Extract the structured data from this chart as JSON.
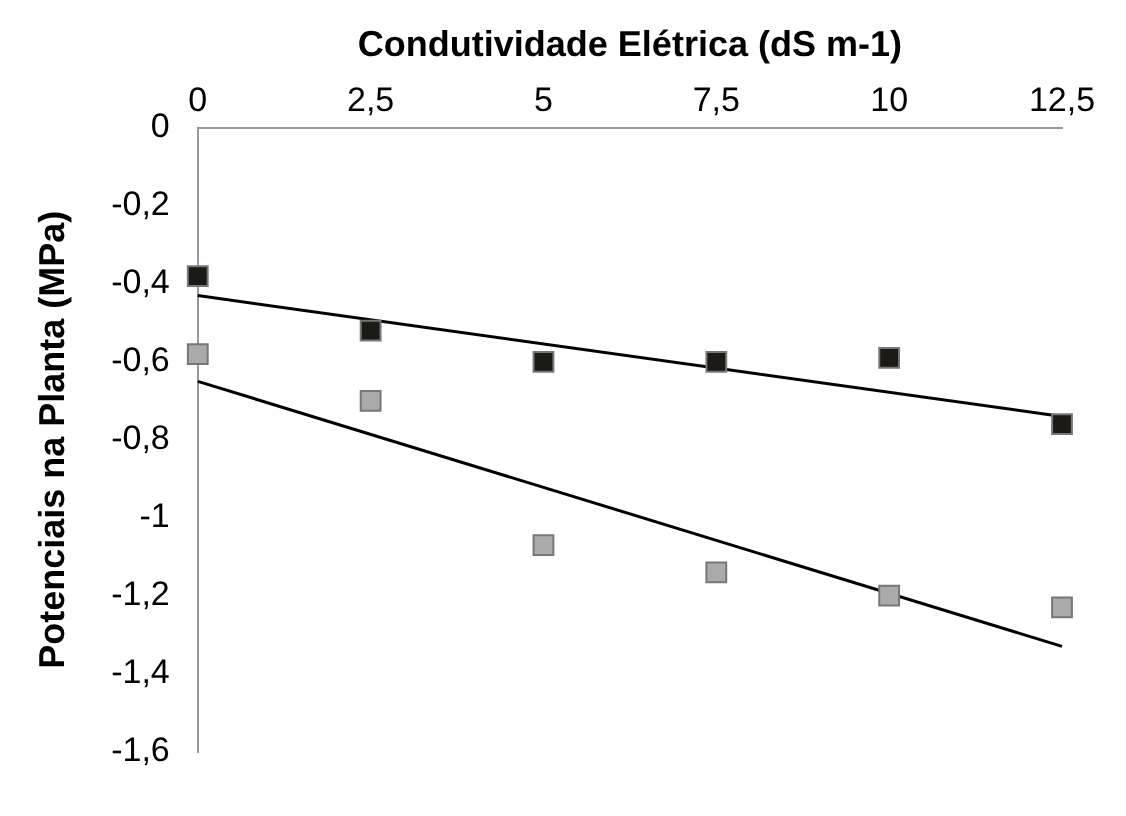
{
  "chart_data": {
    "type": "scatter",
    "xlabel": "Condutividade Elétrica (dS m-1)",
    "ylabel": "Potenciais na Planta (MPa)",
    "xlim": [
      0,
      12.5
    ],
    "xticks": [
      0,
      {
        "value": 2.5,
        "label": "2,5"
      },
      5,
      {
        "value": 7.5,
        "label": "7,5"
      },
      10,
      {
        "value": 12.5,
        "label": "12,5"
      }
    ],
    "ylim": [
      -1.6,
      0
    ],
    "yticks": [
      {
        "value": -1.6,
        "label": "-1,6"
      },
      {
        "value": -1.4,
        "label": "-1,4"
      },
      {
        "value": -1.2,
        "label": "-1,2"
      },
      -1,
      {
        "value": -0.8,
        "label": "-0,8"
      },
      {
        "value": -0.6,
        "label": "-0,6"
      },
      {
        "value": -0.4,
        "label": "-0,4"
      },
      {
        "value": -0.2,
        "label": "-0,2"
      },
      0
    ],
    "grid": false,
    "legend": false,
    "series": [
      {
        "marker": "square",
        "color": "#1c1a14",
        "x": [
          0,
          2.5,
          5,
          7.5,
          10,
          12.5
        ],
        "values": [
          -0.38,
          -0.52,
          -0.6,
          -0.6,
          -0.59,
          -0.76
        ]
      },
      {
        "marker": "square",
        "color": "#aaaaaa",
        "x": [
          0,
          2.5,
          5,
          7.5,
          10,
          12.5
        ],
        "values": [
          -0.58,
          -0.7,
          -1.07,
          -1.14,
          -1.2,
          -1.23
        ]
      },
      {
        "type": "line",
        "marker": "none",
        "color": "#000000",
        "x": [
          0,
          12.5
        ],
        "values": [
          -0.43,
          -0.74
        ]
      },
      {
        "type": "line",
        "marker": "none",
        "color": "#000000",
        "x": [
          0,
          12.5
        ],
        "values": [
          -0.65,
          -1.33
        ]
      }
    ]
  }
}
